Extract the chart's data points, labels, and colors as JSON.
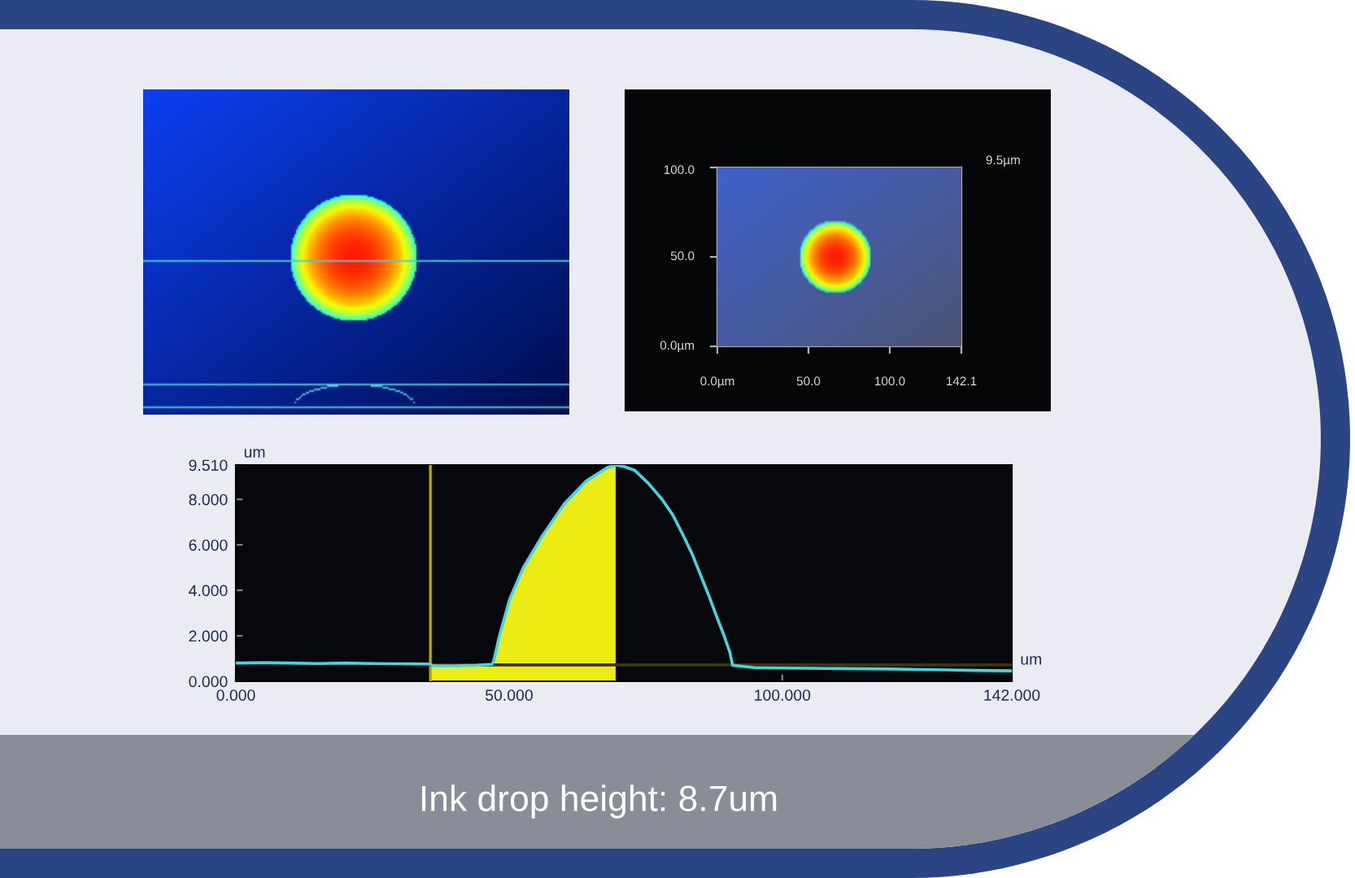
{
  "chart_data": [
    {
      "type": "other",
      "annotations": [
        "100.0",
        "50.0",
        "0.0µm",
        "0.0µm",
        "50.0",
        "100.0",
        "142.1",
        "9.5µm"
      ]
    },
    {
      "type": "line",
      "xlabel": "um",
      "ylabel": "um",
      "xlim": [
        0,
        142
      ],
      "ylim": [
        0,
        9.51
      ],
      "xticks": [
        {
          "value": 0,
          "label": "0.000"
        },
        {
          "value": 50,
          "label": "50.000"
        },
        {
          "value": 100,
          "label": "100.000"
        },
        {
          "value": 142,
          "label": "142.000"
        }
      ],
      "yticks": [
        {
          "value": 0,
          "label": "0.000"
        },
        {
          "value": 2,
          "label": "2.000"
        },
        {
          "value": 4,
          "label": "4.000"
        },
        {
          "value": 6,
          "label": "6.000"
        },
        {
          "value": 8,
          "label": "8.000"
        },
        {
          "value": 9.51,
          "label": "9.510"
        }
      ],
      "grid": false,
      "series": [
        {
          "type": "area",
          "color": "#ecec14",
          "x": [
            35.6,
            40,
            44,
            46.9,
            47.2,
            48.2,
            50.1,
            52.6,
            56.1,
            60.1,
            64.1,
            68.0,
            69.5
          ],
          "values": [
            0.7,
            0.68,
            0.7,
            0.75,
            0.9,
            1.97,
            3.6,
            5.0,
            6.4,
            7.8,
            8.8,
            9.4,
            9.51
          ]
        },
        {
          "color": "#3a3614",
          "x": [
            35.6,
            142
          ],
          "values": [
            0.72,
            0.72
          ]
        },
        {
          "color": "#40d8e0",
          "x": [
            0,
            5,
            10,
            15,
            20,
            25,
            30,
            35.6,
            36,
            40,
            44,
            46.9,
            47.2,
            48.2,
            50.1,
            52.6,
            56.1,
            60.1,
            64.1,
            68.0,
            69.5,
            71,
            73,
            75.5,
            78,
            80,
            81.9,
            83.5,
            84.9,
            86.5,
            87.9,
            89.2,
            90.4,
            90.9,
            95,
            100,
            105,
            110,
            115,
            120,
            125,
            130,
            135,
            142
          ],
          "values": [
            0.8,
            0.82,
            0.8,
            0.78,
            0.8,
            0.78,
            0.77,
            0.76,
            0.68,
            0.68,
            0.7,
            0.75,
            0.9,
            1.97,
            3.6,
            5.0,
            6.4,
            7.8,
            8.8,
            9.4,
            9.51,
            9.45,
            9.28,
            8.7,
            8.0,
            7.3,
            6.4,
            5.6,
            4.76,
            3.8,
            2.9,
            2.1,
            1.28,
            0.7,
            0.6,
            0.58,
            0.57,
            0.56,
            0.55,
            0.54,
            0.52,
            0.5,
            0.48,
            0.46
          ]
        }
      ],
      "ref_lines": [
        {
          "axis": "x",
          "value": 35.6,
          "color": "#b8a800"
        }
      ],
      "annotations": [
        "Ink drop height: 8.7um"
      ]
    }
  ]
}
